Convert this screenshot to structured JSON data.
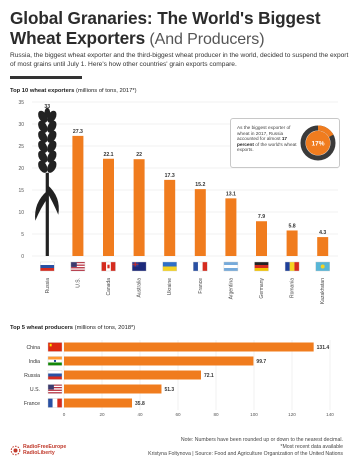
{
  "header": {
    "title_main": "Global Granaries: The World's Biggest",
    "title_second": "Wheat Exporters",
    "title_light": " (And Producers)",
    "subtitle": "Russia, the biggest wheat exporter and the third-biggest wheat producer in the world, decided to suspend the export of most grains until July 1. Here's how other countries' grain exports compare."
  },
  "colors": {
    "accent": "#f07c1e",
    "grid": "#e3e3e3",
    "text": "#333333",
    "callout_track": "#3a3a3a"
  },
  "callout": {
    "line1": "As the biggest exporter of wheat in 2017, Russia accounted for almost",
    "bold": "17 percent",
    "line2": "of the world's wheat exports.",
    "ring_label": "17%",
    "share": 0.17
  },
  "chart_data": [
    {
      "type": "bar",
      "title": "Top 10 wheat exporters",
      "subtitle": "(millions of tons, 2017*)",
      "categories": [
        "Russia",
        "U.S.",
        "Canada",
        "Australia",
        "Ukraine",
        "France",
        "Argentina",
        "Germany",
        "Romania",
        "Kazakhstan"
      ],
      "values": [
        33,
        27.3,
        22.1,
        22,
        17.3,
        15.2,
        13.1,
        7.9,
        5.8,
        4.3
      ],
      "value_labels": [
        "33",
        "27.3",
        "22.1",
        "22",
        "17.3",
        "15.2",
        "13.1",
        "7.9",
        "5.8",
        "4.3"
      ],
      "flags": [
        "russia-flag-icon",
        "usa-flag-icon",
        "canada-flag-icon",
        "australia-flag-icon",
        "ukraine-flag-icon",
        "france-flag-icon",
        "argentina-flag-icon",
        "germany-flag-icon",
        "romania-flag-icon",
        "kazakhstan-flag-icon"
      ],
      "yticks": [
        0,
        5,
        10,
        15,
        20,
        25,
        30,
        35
      ],
      "ylim": [
        0,
        35
      ],
      "grid": true,
      "first_bar_style": "wheat-illustration"
    },
    {
      "type": "bar",
      "orientation": "horizontal",
      "title": "Top 5 wheat producers",
      "subtitle": "(millions of tons, 2018*)",
      "categories": [
        "China",
        "India",
        "Russia",
        "U.S.",
        "France"
      ],
      "values": [
        131.4,
        99.7,
        72.1,
        51.3,
        35.8
      ],
      "value_labels": [
        "131.4",
        "99.7",
        "72.1",
        "51.3",
        "35.8"
      ],
      "flags": [
        "china-flag-icon",
        "india-flag-icon",
        "russia-flag-icon",
        "usa-flag-icon",
        "france-flag-icon"
      ],
      "xticks": [
        0,
        20,
        40,
        60,
        80,
        100,
        120,
        140
      ],
      "xlim": [
        0,
        140
      ],
      "grid": true
    }
  ],
  "notes": {
    "line1": "Note: Numbers have been rounded up or down to the nearest decimal.",
    "line2": "*Most recent data available",
    "line3": "Kristyna Foltynova | Source: Food and Agriculture Organization of the United Nations"
  },
  "logo": {
    "line1": "RadioFreeEurope",
    "line2": "RadioLiberty"
  }
}
